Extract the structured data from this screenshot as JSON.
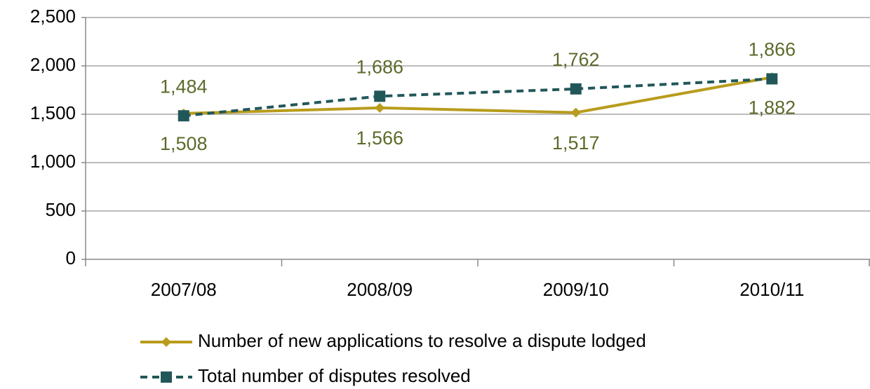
{
  "chart_data": {
    "type": "line",
    "categories": [
      "2007/08",
      "2008/09",
      "2009/10",
      "2010/11"
    ],
    "series": [
      {
        "name": "Number of new applications to resolve a dispute lodged",
        "color": "#b89c1c",
        "values": [
          1508,
          1566,
          1517,
          1882
        ],
        "value_labels": [
          "1,508",
          "1,566",
          "1,517",
          "1,882"
        ],
        "marker": "diamond",
        "dash": "solid"
      },
      {
        "name": "Total number of disputes resolved",
        "color": "#22575a",
        "values": [
          1484,
          1686,
          1762,
          1866
        ],
        "value_labels": [
          "1,484",
          "1,686",
          "1,762",
          "1,866"
        ],
        "marker": "square",
        "dash": "dashed"
      }
    ],
    "ylim": [
      0,
      2500
    ],
    "yticks": [
      0,
      500,
      {
        "value": 1000,
        "label": "1,000"
      },
      {
        "value": 1500,
        "label": "1,500"
      },
      {
        "value": 2000,
        "label": "2,000"
      },
      {
        "value": 2500,
        "label": "2,500"
      }
    ],
    "grid": true,
    "legend": "bottom"
  }
}
